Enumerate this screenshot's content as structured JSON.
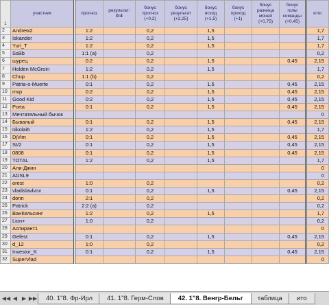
{
  "header": {
    "row_num": "1",
    "name": "участник",
    "prognoz": "прогноз",
    "result_label": "результат:",
    "result_value": "0:4",
    "bonus_prognoz": "бонус прогноз (+0,2)",
    "bonus_result": "бонус результат (+2,25)",
    "bonus_ishod": "бонус исход (+1,5)",
    "bonus_prohod": "бонус проход (+1)",
    "bonus_raznica": "бонус разница мячей (+0,75)",
    "bonus_goly": "бонус голы команды (+0,45)",
    "itog": "итог"
  },
  "rows": [
    {
      "n": "2",
      "name": "Andrew2",
      "pred": "1:2",
      "bp": "0,2",
      "br": "",
      "bi": "1,5",
      "bpr": "",
      "brz": "",
      "bg": "",
      "tot": "1,7"
    },
    {
      "n": "3",
      "name": "Iskander",
      "pred": "1:2",
      "bp": "0,2",
      "br": "",
      "bi": "1,5",
      "bpr": "",
      "brz": "",
      "bg": "",
      "tot": "1,7"
    },
    {
      "n": "4",
      "name": "Yuri_T",
      "pred": "1:2",
      "bp": "0,2",
      "br": "",
      "bi": "1,5",
      "bpr": "",
      "brz": "",
      "bg": "",
      "tot": "1,7"
    },
    {
      "n": "5",
      "name": "SsBb",
      "pred": "1:1 (a)",
      "bp": "0,2",
      "br": "",
      "bi": "",
      "bpr": "",
      "brz": "",
      "bg": "",
      "tot": "0,2"
    },
    {
      "n": "6",
      "name": "шурец",
      "pred": "0:2",
      "bp": "0,2",
      "br": "",
      "bi": "1,5",
      "bpr": "",
      "brz": "",
      "bg": "0,45",
      "tot": "2,15"
    },
    {
      "n": "7",
      "name": "Holden McGroin",
      "pred": "1:2",
      "bp": "0,2",
      "br": "",
      "bi": "1,5",
      "bpr": "",
      "brz": "",
      "bg": "",
      "tot": "1,7"
    },
    {
      "n": "8",
      "name": "Chup",
      "pred": "1:1 (b)",
      "bp": "0,2",
      "br": "",
      "bi": "",
      "bpr": "",
      "brz": "",
      "bg": "",
      "tot": "0,2"
    },
    {
      "n": "9",
      "name": "Patria-o-Muerte",
      "pred": "0:1",
      "bp": "0,2",
      "br": "",
      "bi": "1,5",
      "bpr": "",
      "brz": "",
      "bg": "0,45",
      "tot": "2,15"
    },
    {
      "n": "10",
      "name": "mvp",
      "pred": "0:2",
      "bp": "0,2",
      "br": "",
      "bi": "1,5",
      "bpr": "",
      "brz": "",
      "bg": "0,45",
      "tot": "2,15"
    },
    {
      "n": "11",
      "name": "Good Kid",
      "pred": "0:2",
      "bp": "0,2",
      "br": "",
      "bi": "1,5",
      "bpr": "",
      "brz": "",
      "bg": "0,45",
      "tot": "2,15"
    },
    {
      "n": "12",
      "name": "Porta",
      "pred": "0:1",
      "bp": "0,2",
      "br": "",
      "bi": "1,5",
      "bpr": "",
      "brz": "",
      "bg": "0,45",
      "tot": "2,15"
    },
    {
      "n": "13",
      "name": "Мечтательный бычок",
      "pred": "",
      "bp": "",
      "br": "",
      "bi": "",
      "bpr": "",
      "brz": "",
      "bg": "",
      "tot": "0"
    },
    {
      "n": "14",
      "name": "Бывалый",
      "pred": "0:1",
      "bp": "0,2",
      "br": "",
      "bi": "1,5",
      "bpr": "",
      "brz": "",
      "bg": "0,45",
      "tot": "2,15"
    },
    {
      "n": "15",
      "name": "nikolai6",
      "pred": "1:2",
      "bp": "0,2",
      "br": "",
      "bi": "1,5",
      "bpr": "",
      "brz": "",
      "bg": "",
      "tot": "1,7"
    },
    {
      "n": "16",
      "name": "DjVim",
      "pred": "0:1",
      "bp": "0,2",
      "br": "",
      "bi": "1,5",
      "bpr": "",
      "brz": "",
      "bg": "0,45",
      "tot": "2,15"
    },
    {
      "n": "17",
      "name": "St/2",
      "pred": "0:1",
      "bp": "0,2",
      "br": "",
      "bi": "1,5",
      "bpr": "",
      "brz": "",
      "bg": "0,45",
      "tot": "2,15"
    },
    {
      "n": "18",
      "name": "0808",
      "pred": "0:1",
      "bp": "0,2",
      "br": "",
      "bi": "1,5",
      "bpr": "",
      "brz": "",
      "bg": "0,45",
      "tot": "2,15"
    },
    {
      "n": "19",
      "name": "TOTAL",
      "pred": "1:2",
      "bp": "0,2",
      "br": "",
      "bi": "1,5",
      "bpr": "",
      "brz": "",
      "bg": "",
      "tot": "1,7"
    },
    {
      "n": "20",
      "name": "Али-Джин",
      "pred": "",
      "bp": "",
      "br": "",
      "bi": "",
      "bpr": "",
      "brz": "",
      "bg": "",
      "tot": "0"
    },
    {
      "n": "21",
      "name": "ADSL9",
      "pred": "",
      "bp": "",
      "br": "",
      "bi": "",
      "bpr": "",
      "brz": "",
      "bg": "",
      "tot": "0"
    },
    {
      "n": "22",
      "name": "orest",
      "pred": "1:0",
      "bp": "0,2",
      "br": "",
      "bi": "",
      "bpr": "",
      "brz": "",
      "bg": "",
      "tot": "0,2"
    },
    {
      "n": "23",
      "name": "vladislavlvov",
      "pred": "0:1",
      "bp": "0,2",
      "br": "",
      "bi": "1,5",
      "bpr": "",
      "brz": "",
      "bg": "0,45",
      "tot": "2,15"
    },
    {
      "n": "24",
      "name": "donn",
      "pred": "2:1",
      "bp": "0,2",
      "br": "",
      "bi": "",
      "bpr": "",
      "brz": "",
      "bg": "",
      "tot": "0,2"
    },
    {
      "n": "25",
      "name": "Patrick",
      "pred": "2:2 (a)",
      "bp": "0,2",
      "br": "",
      "bi": "",
      "bpr": "",
      "brz": "",
      "bg": "",
      "tot": "0,2"
    },
    {
      "n": "26",
      "name": "ВанКельсинг",
      "pred": "1:2",
      "bp": "0,2",
      "br": "",
      "bi": "1,5",
      "bpr": "",
      "brz": "",
      "bg": "",
      "tot": "1,7"
    },
    {
      "n": "27",
      "name": "Lion+",
      "pred": "1:0",
      "bp": "0,2",
      "br": "",
      "bi": "",
      "bpr": "",
      "brz": "",
      "bg": "",
      "tot": "0,2"
    },
    {
      "n": "28",
      "name": "Аспирант1",
      "pred": "",
      "bp": "",
      "br": "",
      "bi": "",
      "bpr": "",
      "brz": "",
      "bg": "",
      "tot": "0"
    },
    {
      "n": "29",
      "name": "Gefest",
      "pred": "0:1",
      "bp": "0,2",
      "br": "",
      "bi": "1,5",
      "bpr": "",
      "brz": "",
      "bg": "0,45",
      "tot": "2,15"
    },
    {
      "n": "30",
      "name": "d_12",
      "pred": "1:0",
      "bp": "0,2",
      "br": "",
      "bi": "",
      "bpr": "",
      "brz": "",
      "bg": "",
      "tot": "0,2"
    },
    {
      "n": "31",
      "name": "Investor_K",
      "pred": "0:1",
      "bp": "0,2",
      "br": "",
      "bi": "1,5",
      "bpr": "",
      "brz": "",
      "bg": "0,45",
      "tot": "2,15"
    },
    {
      "n": "32",
      "name": "SuperVlad",
      "pred": "",
      "bp": "",
      "br": "",
      "bi": "",
      "bpr": "",
      "brz": "",
      "bg": "",
      "tot": "0"
    }
  ],
  "tabs": [
    {
      "label": "40. 1\"8. Фр-Ирл",
      "active": false
    },
    {
      "label": "41. 1\"8. Герм-Слов",
      "active": false
    },
    {
      "label": "42. 1\"8. Венгр-Бельг",
      "active": true
    },
    {
      "label": "таблица",
      "active": false
    },
    {
      "label": "ито",
      "active": false
    }
  ],
  "nav": {
    "first": "◀◀",
    "prev": "◀",
    "next": "▶",
    "last": "▶▶"
  }
}
